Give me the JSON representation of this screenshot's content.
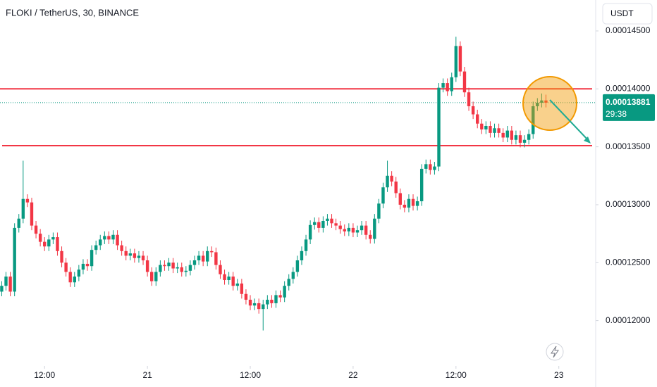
{
  "chart_data": {
    "type": "candlestick",
    "title": "FLOKI / TetherUS, 30, BINANCE",
    "currency": "USDT",
    "up_color": "#089981",
    "down_color": "#f23645",
    "open": [
      0.0001225,
      0.000123,
      0.0001238,
      0.0001225,
      0.000128,
      0.0001288,
      0.0001305,
      0.0001302,
      0.0001282,
      0.0001275,
      0.0001268,
      0.0001264,
      0.000127,
      0.0001272,
      0.000126,
      0.000125,
      0.0001242,
      0.0001233,
      0.0001238,
      0.0001244,
      0.0001249,
      0.0001247,
      0.0001261,
      0.0001265,
      0.000127,
      0.0001273,
      0.000127,
      0.0001274,
      0.0001265,
      0.000126,
      0.0001256,
      0.0001258,
      0.0001254,
      0.0001256,
      0.0001252,
      0.0001242,
      0.0001234,
      0.0001242,
      0.0001248,
      0.0001247,
      0.000125,
      0.0001245,
      0.0001246,
      0.0001242,
      0.0001243,
      0.0001248,
      0.0001252,
      0.0001256,
      0.0001251,
      0.000126,
      0.0001259,
      0.0001248,
      0.000124,
      0.0001235,
      0.0001238,
      0.000123,
      0.0001232,
      0.0001223,
      0.0001218,
      0.0001213,
      0.0001215,
      0.000121,
      0.0001214,
      0.0001218,
      0.0001215,
      0.0001222,
      0.000122,
      0.000123,
      0.0001236,
      0.0001242,
      0.0001252,
      0.000126,
      0.000127,
      0.00012825,
      0.0001285,
      0.000128,
      0.0001286,
      0.0001288,
      0.0001284,
      0.0001282,
      0.0001279,
      0.0001277,
      0.000128,
      0.0001276,
      0.0001278,
      0.0001282,
      0.0001274,
      0.00012705,
      0.0001288,
      0.0001301,
      0.0001315,
      0.0001325,
      0.000132,
      0.000131,
      0.00013,
      0.00012975,
      0.0001305,
      0.0001299,
      0.0001303,
      0.0001331,
      0.0001335,
      0.000133,
      0.0001333,
      0.0001401,
      0.0001405,
      0.0001398,
      0.000141,
      0.0001437,
      0.0001415,
      0.0001397,
      0.0001385,
      0.0001378,
      0.000137,
      0.0001365,
      0.0001368,
      0.0001362,
      0.0001366,
      0.0001362,
      0.0001358,
      0.0001364,
      0.0001356,
      0.000136,
      0.00013535,
      0.0001356,
      0.0001361,
      0.0001385,
      0.0001388,
      0.000139
    ],
    "high": [
      0.0001234,
      0.0001242,
      0.0001242,
      0.0001284,
      0.0001292,
      0.0001338,
      0.0001309,
      0.0001306,
      0.0001286,
      0.0001279,
      0.0001272,
      0.0001274,
      0.0001276,
      0.0001276,
      0.0001264,
      0.0001254,
      0.0001246,
      0.0001242,
      0.0001248,
      0.0001253,
      0.0001253,
      0.0001265,
      0.0001269,
      0.0001274,
      0.0001277,
      0.0001277,
      0.0001278,
      0.0001278,
      0.0001269,
      0.0001264,
      0.0001262,
      0.0001262,
      0.000126,
      0.000126,
      0.0001256,
      0.0001246,
      0.0001246,
      0.0001252,
      0.0001252,
      0.0001254,
      0.0001254,
      0.000125,
      0.000125,
      0.0001247,
      0.0001252,
      0.0001256,
      0.000126,
      0.000126,
      0.0001264,
      0.0001264,
      0.0001263,
      0.0001252,
      0.0001244,
      0.0001242,
      0.0001242,
      0.0001236,
      0.0001236,
      0.0001227,
      0.0001222,
      0.0001219,
      0.0001219,
      0.0001218,
      0.0001222,
      0.0001222,
      0.0001226,
      0.0001226,
      0.0001234,
      0.000124,
      0.0001246,
      0.0001256,
      0.0001264,
      0.0001274,
      0.00012865,
      0.0001289,
      0.0001289,
      0.000129,
      0.0001292,
      0.0001292,
      0.0001288,
      0.0001286,
      0.0001283,
      0.0001284,
      0.0001284,
      0.0001282,
      0.0001286,
      0.0001286,
      0.0001278,
      0.0001292,
      0.0001305,
      0.0001319,
      0.0001338,
      0.0001329,
      0.0001324,
      0.0001314,
      0.0001304,
      0.0001309,
      0.0001309,
      0.0001307,
      0.0001335,
      0.0001339,
      0.0001339,
      0.0001337,
      0.0001405,
      0.0001409,
      0.0001409,
      0.0001414,
      0.0001445,
      0.0001441,
      0.0001419,
      0.0001401,
      0.0001389,
      0.0001382,
      0.0001374,
      0.0001372,
      0.0001372,
      0.000137,
      0.000137,
      0.0001366,
      0.0001368,
      0.0001368,
      0.0001364,
      0.0001364,
      0.000136,
      0.0001365,
      0.0001389,
      0.0001392,
      0.0001396,
      0.0001395
    ],
    "low": [
      0.0001221,
      0.0001226,
      0.0001221,
      0.0001221,
      0.0001276,
      0.0001284,
      0.0001298,
      0.0001278,
      0.0001271,
      0.0001264,
      0.000126,
      0.000126,
      0.0001266,
      0.0001256,
      0.0001246,
      0.0001238,
      0.0001229,
      0.0001229,
      0.0001234,
      0.000124,
      0.0001243,
      0.0001243,
      0.0001257,
      0.0001261,
      0.0001266,
      0.0001266,
      0.0001266,
      0.0001261,
      0.0001256,
      0.0001252,
      0.0001252,
      0.000125,
      0.000125,
      0.0001248,
      0.0001238,
      0.000123,
      0.000123,
      0.0001238,
      0.0001243,
      0.0001243,
      0.0001241,
      0.0001241,
      0.0001238,
      0.0001238,
      0.0001239,
      0.0001244,
      0.0001248,
      0.0001247,
      0.0001247,
      0.0001255,
      0.0001244,
      0.0001236,
      0.0001231,
      0.0001231,
      0.0001226,
      0.0001226,
      0.0001219,
      0.0001214,
      0.0001209,
      0.0001209,
      0.0001206,
      0.00011915,
      0.000121,
      0.0001211,
      0.0001211,
      0.0001216,
      0.0001216,
      0.0001226,
      0.0001232,
      0.0001238,
      0.0001248,
      0.0001256,
      0.0001266,
      0.00012785,
      0.0001276,
      0.0001276,
      0.0001282,
      0.000128,
      0.0001278,
      0.0001275,
      0.0001273,
      0.0001273,
      0.0001272,
      0.0001272,
      0.0001274,
      0.000127,
      0.00012665,
      0.00012665,
      0.0001284,
      0.0001297,
      0.0001311,
      0.0001316,
      0.0001306,
      0.0001296,
      0.00012935,
      0.00012935,
      0.0001295,
      0.0001295,
      0.0001299,
      0.0001327,
      0.0001326,
      0.0001326,
      0.0001329,
      0.0001397,
      0.0001394,
      0.0001394,
      0.0001406,
      0.0001411,
      0.0001393,
      0.0001381,
      0.0001374,
      0.0001366,
      0.0001361,
      0.0001361,
      0.0001358,
      0.0001358,
      0.0001358,
      0.0001354,
      0.0001354,
      0.0001352,
      0.0001352,
      0.00013495,
      0.00013495,
      0.0001352,
      0.0001357,
      0.0001381,
      0.0001384,
      0.0001384
    ],
    "close": [
      0.000123,
      0.0001238,
      0.0001225,
      0.000128,
      0.0001288,
      0.0001305,
      0.0001302,
      0.0001282,
      0.0001275,
      0.0001268,
      0.0001264,
      0.000127,
      0.0001272,
      0.000126,
      0.000125,
      0.0001242,
      0.0001233,
      0.0001238,
      0.0001244,
      0.0001249,
      0.0001247,
      0.0001261,
      0.0001265,
      0.000127,
      0.0001273,
      0.000127,
      0.0001274,
      0.0001265,
      0.000126,
      0.0001256,
      0.0001258,
      0.0001254,
      0.0001256,
      0.0001252,
      0.0001242,
      0.0001234,
      0.0001242,
      0.0001248,
      0.0001247,
      0.000125,
      0.0001245,
      0.0001246,
      0.0001242,
      0.0001243,
      0.0001248,
      0.0001252,
      0.0001256,
      0.0001251,
      0.000126,
      0.0001259,
      0.0001248,
      0.000124,
      0.0001235,
      0.0001238,
      0.000123,
      0.0001232,
      0.0001223,
      0.0001218,
      0.0001213,
      0.0001215,
      0.000121,
      0.0001214,
      0.0001218,
      0.0001215,
      0.0001222,
      0.000122,
      0.000123,
      0.0001236,
      0.0001242,
      0.0001252,
      0.000126,
      0.000127,
      0.00012825,
      0.0001285,
      0.000128,
      0.0001286,
      0.0001288,
      0.0001284,
      0.0001282,
      0.0001279,
      0.0001277,
      0.000128,
      0.0001276,
      0.0001278,
      0.0001282,
      0.0001274,
      0.00012705,
      0.0001288,
      0.0001301,
      0.0001315,
      0.0001325,
      0.000132,
      0.000131,
      0.00013,
      0.00012975,
      0.0001305,
      0.0001299,
      0.0001303,
      0.0001331,
      0.0001335,
      0.000133,
      0.0001333,
      0.0001401,
      0.0001405,
      0.0001398,
      0.000141,
      0.0001437,
      0.0001415,
      0.0001397,
      0.0001385,
      0.0001378,
      0.000137,
      0.0001365,
      0.0001368,
      0.0001362,
      0.0001366,
      0.0001362,
      0.0001358,
      0.0001364,
      0.0001356,
      0.000136,
      0.00013535,
      0.0001356,
      0.0001361,
      0.0001385,
      0.0001388,
      0.000139,
      0.00013881
    ],
    "last_price": 0.00013881,
    "countdown": "29:38",
    "levels": [
      {
        "value": 0.00014,
        "color": "#f23645"
      },
      {
        "value": 0.0001351,
        "color": "#f23645"
      }
    ],
    "xlim": [
      -0.4,
      138.6
    ],
    "ylim": [
      0.00011609,
      0.00014767
    ],
    "xticks": [
      {
        "value": 10,
        "label": "12:00"
      },
      {
        "value": 34,
        "label": "21"
      },
      {
        "value": 58,
        "label": "12:00"
      },
      {
        "value": 82,
        "label": "22"
      },
      {
        "value": 106,
        "label": "12:00"
      },
      {
        "value": 130,
        "label": "23"
      }
    ],
    "yticks": [
      {
        "value": 0.00012,
        "label": "0.00012000"
      },
      {
        "value": 0.000125,
        "label": "0.00012500"
      },
      {
        "value": 0.00013,
        "label": "0.00013000"
      },
      {
        "value": 0.000135,
        "label": "0.00013500"
      },
      {
        "value": 0.00014,
        "label": "0.00014000"
      },
      {
        "value": 0.000145,
        "label": "0.00014500"
      }
    ],
    "grid": false
  }
}
